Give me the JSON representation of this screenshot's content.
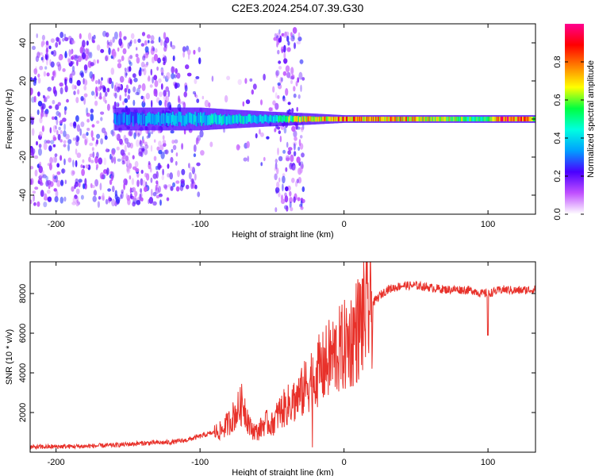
{
  "title": "C2E3.2024.254.07.39.G30",
  "colors": {
    "snr_line": "#e8312a",
    "frame": "#000000"
  },
  "chart_data": [
    {
      "type": "heatmap",
      "xlabel": "Height of straight line (km)",
      "ylabel": "Frequency (Hz)",
      "xlim": [
        -218,
        133
      ],
      "ylim": [
        -50,
        50
      ],
      "xticks": [
        -200,
        -100,
        0,
        100
      ],
      "yticks": [
        -40,
        -20,
        0,
        20,
        40
      ],
      "colorbar": {
        "label": "Normalized spectral amplitude",
        "range": [
          0,
          1
        ],
        "ticks": [
          0.0,
          0.2,
          0.4,
          0.6,
          0.8
        ],
        "tick_labels": [
          "0.0",
          "0.2",
          "0.4",
          "0.6",
          "0.8"
        ],
        "stops": [
          "#ffffff",
          "#c050ff",
          "#4a00ff",
          "#00a0ff",
          "#00ffe0",
          "#00ff40",
          "#ffff00",
          "#ff8000",
          "#ff0000",
          "#ff0090"
        ]
      },
      "regions": [
        {
          "x": [
            -218,
            -120
          ],
          "density": 0.55,
          "scatter": 45
        },
        {
          "x": [
            -120,
            -100
          ],
          "density": 0.3,
          "scatter": 40
        },
        {
          "x": [
            -100,
            -48
          ],
          "density": 0.06,
          "scatter": 25
        },
        {
          "x": [
            -48,
            -28
          ],
          "density": 0.6,
          "scatter": 48
        }
      ],
      "band": [
        {
          "x": -160,
          "width": 6,
          "amp": 0.3
        },
        {
          "x": -130,
          "width": 6,
          "amp": 0.35
        },
        {
          "x": -100,
          "width": 6,
          "amp": 0.4
        },
        {
          "x": -80,
          "width": 5,
          "amp": 0.45
        },
        {
          "x": -55,
          "width": 4,
          "amp": 0.4
        },
        {
          "x": -25,
          "width": 3,
          "amp": 0.7
        },
        {
          "x": 0,
          "width": 2,
          "amp": 0.8
        },
        {
          "x": 40,
          "width": 2,
          "amp": 0.75
        },
        {
          "x": 80,
          "width": 2,
          "amp": 0.6
        },
        {
          "x": 95,
          "width": 2,
          "amp": 0.5
        },
        {
          "x": 110,
          "width": 2,
          "amp": 0.9
        },
        {
          "x": 133,
          "width": 2,
          "amp": 0.7
        }
      ]
    },
    {
      "type": "line",
      "xlabel": "Height of straight line (km)",
      "ylabel": "SNR (10 * v/v)",
      "xlim": [
        -218,
        133
      ],
      "ylim": [
        0,
        9600
      ],
      "xticks": [
        -200,
        -100,
        0,
        100
      ],
      "yticks": [
        2000,
        4000,
        6000,
        8000
      ],
      "series": [
        {
          "x": [
            -218,
            -200,
            -180,
            -160,
            -140,
            -120,
            -110,
            -100,
            -90,
            -85,
            -80,
            -75,
            -70,
            -65,
            -60,
            -55,
            -50,
            -45,
            -40,
            -35,
            -30,
            -25,
            -20,
            -15,
            -10,
            -5,
            0,
            5,
            10,
            15,
            20,
            25,
            30,
            40,
            50,
            60,
            70,
            80,
            90,
            95,
            100,
            105,
            110,
            120,
            133
          ],
          "y": [
            250,
            280,
            300,
            350,
            450,
            500,
            600,
            800,
            1000,
            1100,
            1500,
            2000,
            2500,
            1200,
            1000,
            1500,
            1400,
            2000,
            2300,
            2600,
            2900,
            3500,
            4000,
            4200,
            4700,
            5000,
            5300,
            5700,
            6300,
            7000,
            7500,
            7900,
            8200,
            8400,
            8400,
            8300,
            8200,
            8200,
            8150,
            8000,
            8000,
            8100,
            8200,
            8150,
            8200
          ]
        }
      ]
    }
  ]
}
